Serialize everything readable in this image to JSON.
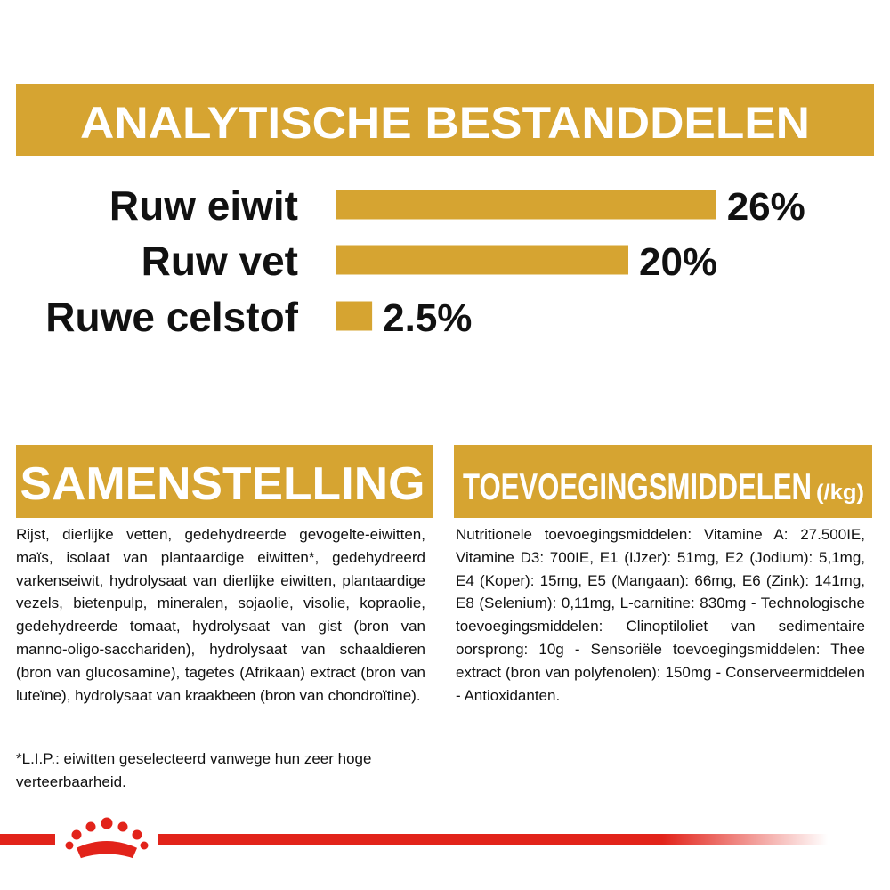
{
  "header": {
    "title": "ANALYTISCHE BESTANDDELEN"
  },
  "chart_data": {
    "type": "bar",
    "orientation": "horizontal",
    "categories": [
      "Ruw eiwit",
      "Ruw vet",
      "Ruwe celstof"
    ],
    "values": [
      26,
      20,
      2.5
    ],
    "value_labels": [
      "26%",
      "20%",
      "2.5%"
    ],
    "color": "#d6a431"
  },
  "composition": {
    "title": "SAMENSTELLING",
    "paragraphs": [
      "Rijst, dierlijke vetten, gedehydreerde gevogelte-eiwitten, maïs, isolaat van plantaardige eiwitten*, gedehydreerd varkenseiwit, hydrolysaat van dierlijke eiwitten, plantaardige vezels, bietenpulp, mineralen, sojaolie, visolie, kopraolie, gedehydreerde tomaat, hydrolysaat van gist (bron van manno-oligo-sacchariden), hydrolysaat van schaaldieren (bron van glucosamine), tagetes (Afrikaan) extract (bron van luteïne), hydrolysaat van kraakbeen (bron van chondroïtine).",
      "*L.I.P.: eiwitten geselecteerd vanwege hun zeer hoge verteerbaarheid."
    ]
  },
  "additives": {
    "title": "TOEVOEGINGSMIDDELEN",
    "unit": "(/kg)",
    "paragraphs": [
      "Nutritionele toevoegingsmiddelen: Vitamine A: 27.500IE, Vitamine D3: 700IE, E1 (IJzer): 51mg, E2 (Jodium): 5,1mg, E4 (Koper): 15mg, E5 (Mangaan): 66mg, E6 (Zink): 141mg, E8 (Selenium): 0,11mg, L-carnitine: 830mg - Technologische toevoegingsmiddelen: Clinoptiloliet van sedimentaire oorsprong: 10g - Sensoriële toevoegingsmiddelen: Thee extract (bron van polyfenolen): 150mg - Conserveermiddelen - Antioxidanten."
    ]
  }
}
